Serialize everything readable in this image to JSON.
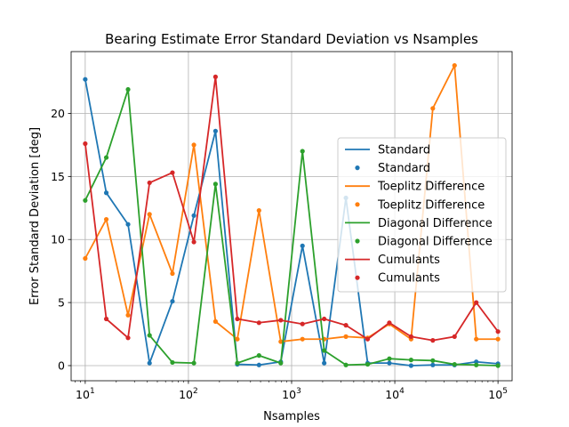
{
  "chart_data": {
    "type": "line",
    "title": "Bearing Estimate Error Standard Deviation vs Nsamples",
    "xlabel": "Nsamples",
    "ylabel": "Error Standard Deviation [deg]",
    "xscale": "log",
    "xlim": [
      7.3,
      137000
    ],
    "ylim": [
      -1.2,
      24.9
    ],
    "xticks": [
      10,
      100,
      1000,
      10000,
      100000
    ],
    "xtick_labels": [
      {
        "base": "10",
        "exp": "1"
      },
      {
        "base": "10",
        "exp": "2"
      },
      {
        "base": "10",
        "exp": "3"
      },
      {
        "base": "10",
        "exp": "4"
      },
      {
        "base": "10",
        "exp": "5"
      }
    ],
    "yticks": [
      0,
      5,
      10,
      15,
      20
    ],
    "ytick_labels": [
      "0",
      "5",
      "10",
      "15",
      "20"
    ],
    "grid": true,
    "legend_position": "center-right",
    "x": [
      10,
      16,
      26,
      42,
      70,
      113,
      183,
      298,
      483,
      785,
      1274,
      2069,
      3359,
      5455,
      8858,
      14384,
      23357,
      37927,
      61585,
      100000
    ],
    "series": [
      {
        "name": "Standard",
        "color": "#1f77b4",
        "values": [
          22.7,
          13.7,
          11.2,
          0.2,
          5.1,
          11.9,
          18.6,
          0.1,
          0.05,
          0.3,
          9.5,
          0.2,
          13.3,
          0.2,
          0.2,
          0.0,
          0.05,
          0.05,
          0.3,
          0.15
        ]
      },
      {
        "name": "Toeplitz Difference",
        "color": "#ff7f0e",
        "values": [
          8.5,
          11.6,
          4.0,
          12.0,
          7.3,
          17.5,
          3.5,
          2.1,
          12.3,
          1.9,
          2.1,
          2.1,
          2.3,
          2.2,
          3.3,
          2.1,
          20.4,
          23.8,
          2.1,
          2.1
        ]
      },
      {
        "name": "Diagonal Difference",
        "color": "#2ca02c",
        "values": [
          13.1,
          16.5,
          21.9,
          2.4,
          0.25,
          0.2,
          14.4,
          0.2,
          0.8,
          0.2,
          17.0,
          1.2,
          0.05,
          0.1,
          0.55,
          0.45,
          0.4,
          0.1,
          0.05,
          0.0
        ]
      },
      {
        "name": "Cumulants",
        "color": "#d62728",
        "values": [
          17.6,
          3.7,
          2.2,
          14.5,
          15.3,
          9.8,
          22.9,
          3.7,
          3.4,
          3.6,
          3.3,
          3.7,
          3.2,
          2.1,
          3.4,
          2.3,
          2.0,
          2.3,
          5.0,
          2.7
        ]
      }
    ],
    "legend_entries": [
      {
        "label": "Standard",
        "series": 0,
        "kind": "line"
      },
      {
        "label": "Standard",
        "series": 0,
        "kind": "marker"
      },
      {
        "label": "Toeplitz Difference",
        "series": 1,
        "kind": "line"
      },
      {
        "label": "Toeplitz Difference",
        "series": 1,
        "kind": "marker"
      },
      {
        "label": "Diagonal Difference",
        "series": 2,
        "kind": "line"
      },
      {
        "label": "Diagonal Difference",
        "series": 2,
        "kind": "marker"
      },
      {
        "label": "Cumulants",
        "series": 3,
        "kind": "line"
      },
      {
        "label": "Cumulants",
        "series": 3,
        "kind": "marker"
      }
    ]
  }
}
